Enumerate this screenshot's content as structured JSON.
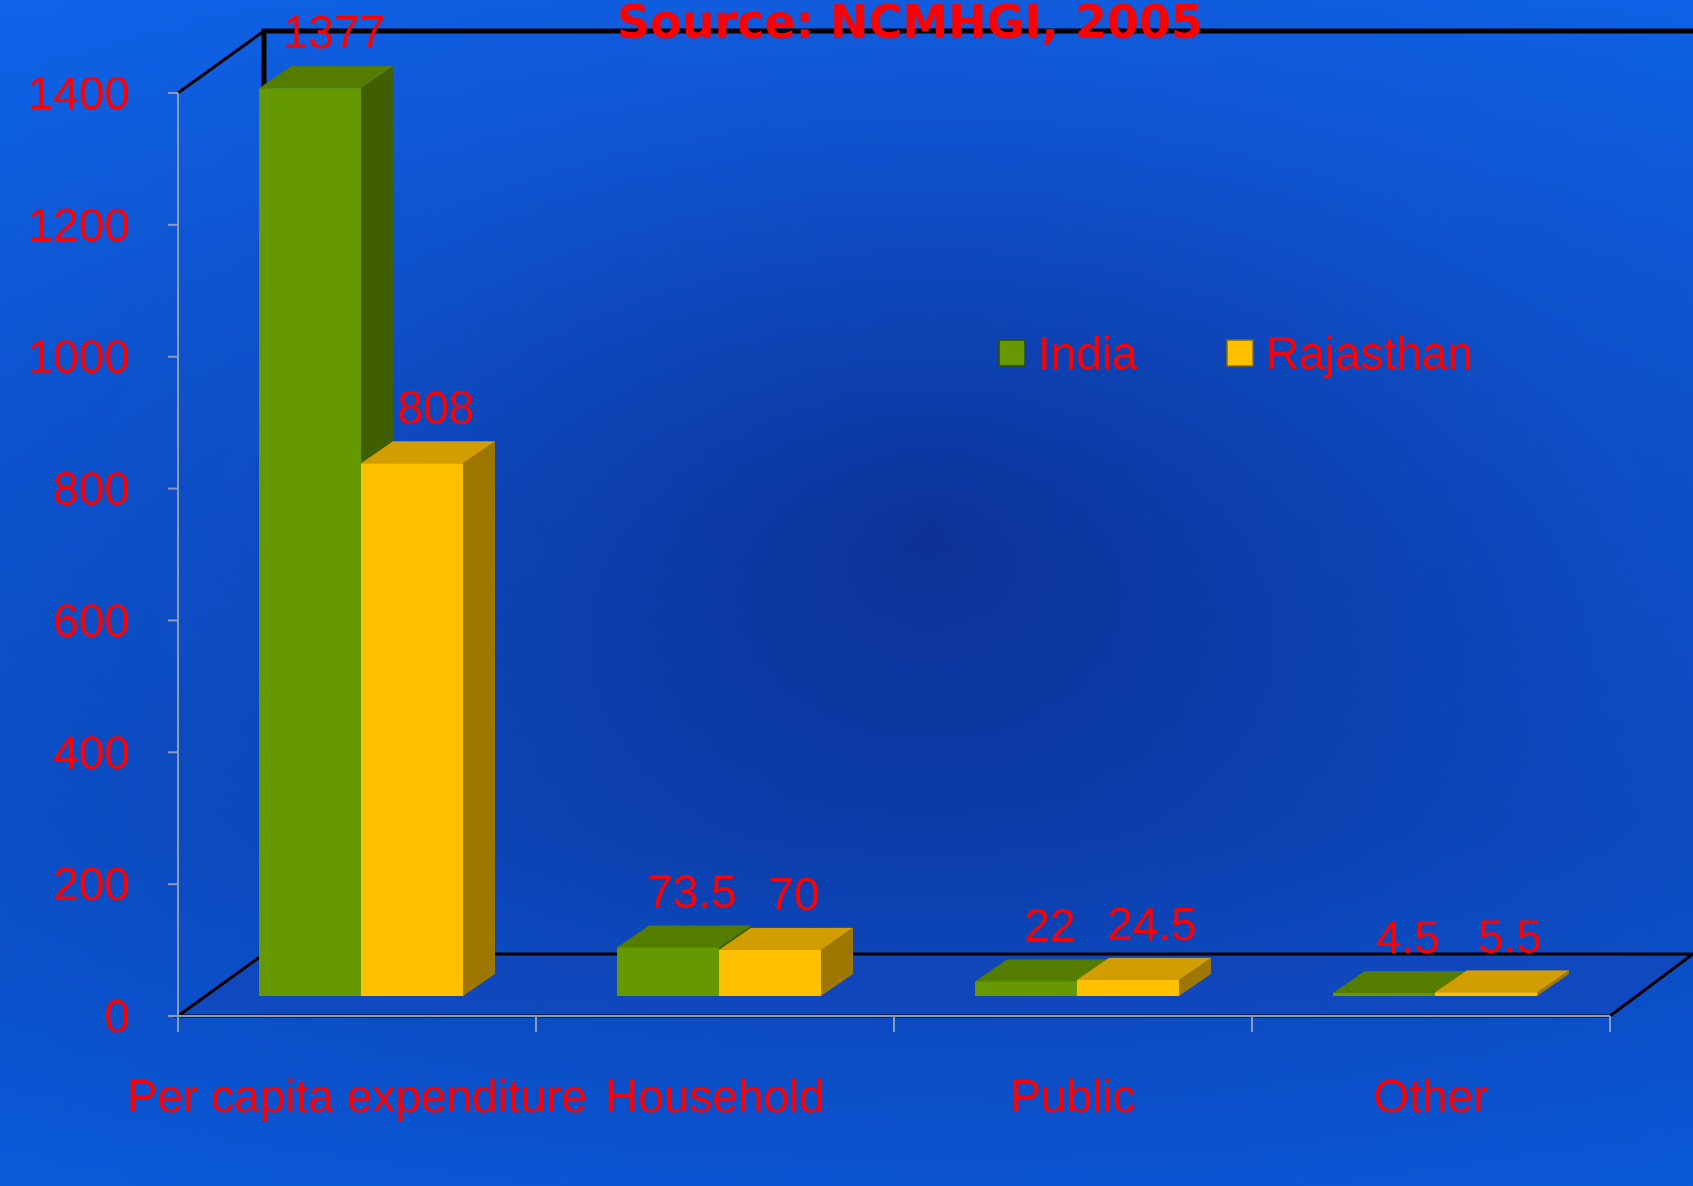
{
  "chart_data": {
    "type": "bar",
    "title": "Source: NCMHGI, 2005",
    "categories": [
      "Per capita expenditure",
      "Household",
      "Public",
      "Other"
    ],
    "series": [
      {
        "name": "India",
        "values": [
          1377,
          73.5,
          22,
          4.5
        ],
        "data_labels": [
          "1377",
          "73.5",
          "22",
          "4.5"
        ]
      },
      {
        "name": "Rajasthan",
        "values": [
          808,
          70,
          24.5,
          5.5
        ],
        "data_labels": [
          "808",
          "70",
          "24.5",
          "5.5"
        ]
      }
    ],
    "y_ticks": [
      "0",
      "200",
      "400",
      "600",
      "800",
      "1000",
      "1200",
      "1400"
    ],
    "ylim": [
      0,
      1400
    ],
    "legend_position": "top-right",
    "grid": false,
    "colors": {
      "India": "#669900",
      "Rajasthan": "#ffc000",
      "text": "#ff0000",
      "background": "#0a3fb0"
    }
  }
}
